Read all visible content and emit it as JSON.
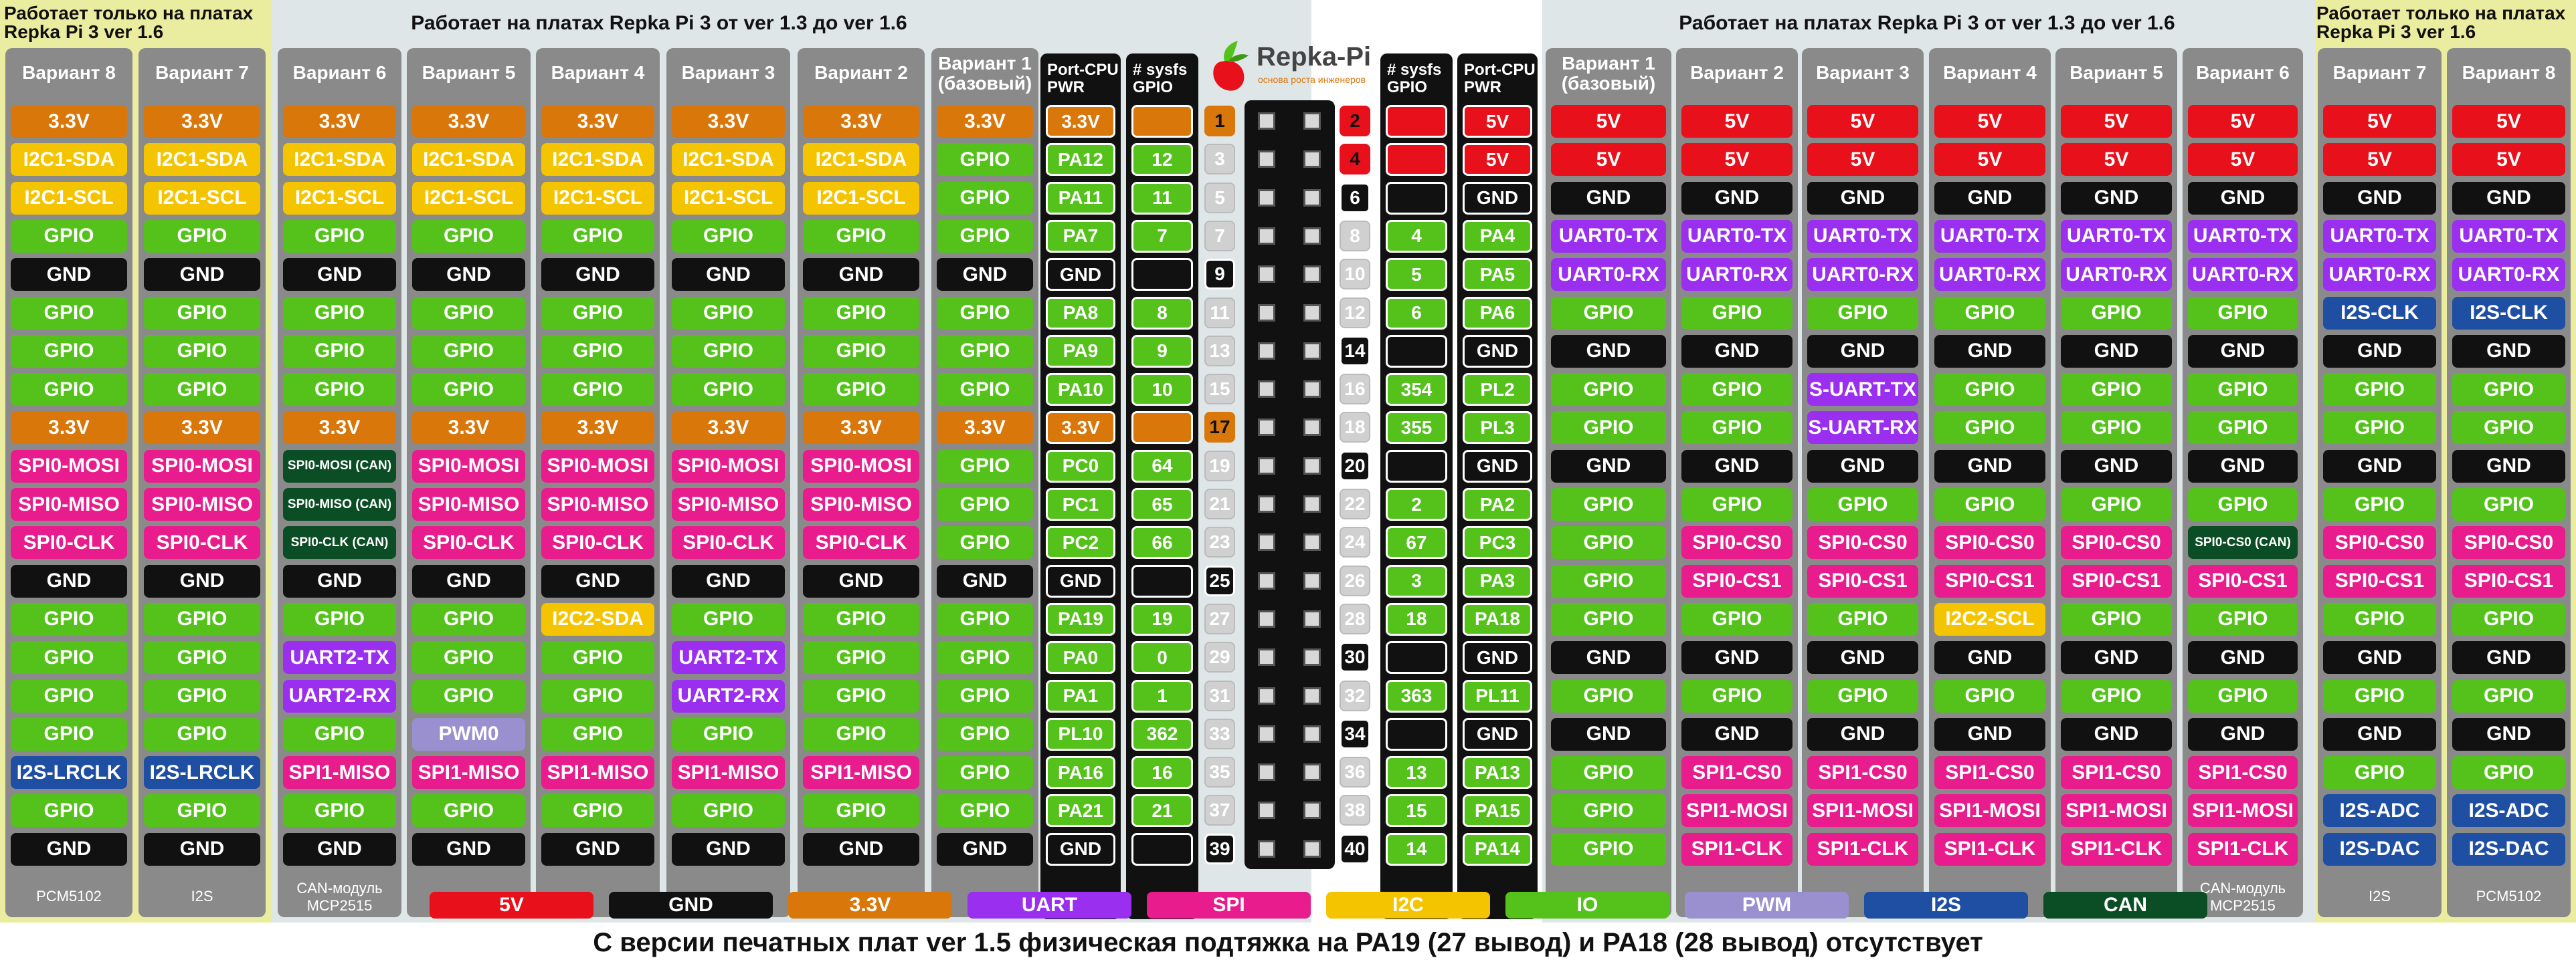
{
  "zones": {
    "left_outer_title": "Работает только на платах\nRepka Pi 3 ver 1.6",
    "left_mid_title": "Работает на платах Repka Pi 3 от ver 1.3 до ver 1.6",
    "right_mid_title": "Работает на платах Repka Pi 3 от ver 1.3 до ver 1.6",
    "right_outer_title": "Работает только на платах\nRepka Pi 3 ver 1.6"
  },
  "logo": {
    "text": "Repka-Pi",
    "subtitle": "основа роста инженеров"
  },
  "colors": {
    "5V": "#e8101a",
    "GND": "#111111",
    "3.3V": "#d9770a",
    "UART": "#9b2ff0",
    "SPI": "#e81c8c",
    "I2C": "#f5c400",
    "IO": "#54c21b",
    "PWM": "#9a90d0",
    "I2S": "#1f4fa3",
    "CAN": "#0b4d24",
    "outline": "#111111"
  },
  "left_columns": [
    {
      "name": "Вариант 8",
      "footer": "PCM5102",
      "cells": [
        "3.3V",
        "I2C1-SDA",
        "I2C1-SCL",
        "GPIO",
        "GND",
        "GPIO",
        "GPIO",
        "GPIO",
        "3.3V",
        "SPI0-MOSI",
        "SPI0-MISO",
        "SPI0-CLK",
        "GND",
        "GPIO",
        "GPIO",
        "GPIO",
        "GPIO",
        "I2S-LRCLK",
        "GPIO",
        "GND"
      ],
      "types": [
        "3.3V",
        "I2C",
        "I2C",
        "IO",
        "GND",
        "IO",
        "IO",
        "IO",
        "3.3V",
        "SPI",
        "SPI",
        "SPI",
        "GND",
        "IO",
        "IO",
        "IO",
        "IO",
        "I2S",
        "IO",
        "GND"
      ]
    },
    {
      "name": "Вариант 7",
      "footer": "I2S",
      "cells": [
        "3.3V",
        "I2C1-SDA",
        "I2C1-SCL",
        "GPIO",
        "GND",
        "GPIO",
        "GPIO",
        "GPIO",
        "3.3V",
        "SPI0-MOSI",
        "SPI0-MISO",
        "SPI0-CLK",
        "GND",
        "GPIO",
        "GPIO",
        "GPIO",
        "GPIO",
        "I2S-LRCLK",
        "GPIO",
        "GND"
      ],
      "types": [
        "3.3V",
        "I2C",
        "I2C",
        "IO",
        "GND",
        "IO",
        "IO",
        "IO",
        "3.3V",
        "SPI",
        "SPI",
        "SPI",
        "GND",
        "IO",
        "IO",
        "IO",
        "IO",
        "I2S",
        "IO",
        "GND"
      ]
    },
    {
      "name": "Вариант 6",
      "footer": "CAN-модуль\nMCP2515",
      "cells": [
        "3.3V",
        "I2C1-SDA",
        "I2C1-SCL",
        "GPIO",
        "GND",
        "GPIO",
        "GPIO",
        "GPIO",
        "3.3V",
        "SPI0-MOSI (CAN)",
        "SPI0-MISO (CAN)",
        "SPI0-CLK (CAN)",
        "GND",
        "GPIO",
        "UART2-TX",
        "UART2-RX",
        "GPIO",
        "SPI1-MISO",
        "GPIO",
        "GND"
      ],
      "types": [
        "3.3V",
        "I2C",
        "I2C",
        "IO",
        "GND",
        "IO",
        "IO",
        "IO",
        "3.3V",
        "CAN",
        "CAN",
        "CAN",
        "GND",
        "IO",
        "UART",
        "UART",
        "IO",
        "SPI",
        "IO",
        "GND"
      ]
    },
    {
      "name": "Вариант 5",
      "footer": "",
      "cells": [
        "3.3V",
        "I2C1-SDA",
        "I2C1-SCL",
        "GPIO",
        "GND",
        "GPIO",
        "GPIO",
        "GPIO",
        "3.3V",
        "SPI0-MOSI",
        "SPI0-MISO",
        "SPI0-CLK",
        "GND",
        "GPIO",
        "GPIO",
        "GPIO",
        "PWM0",
        "SPI1-MISO",
        "GPIO",
        "GND"
      ],
      "types": [
        "3.3V",
        "I2C",
        "I2C",
        "IO",
        "GND",
        "IO",
        "IO",
        "IO",
        "3.3V",
        "SPI",
        "SPI",
        "SPI",
        "GND",
        "IO",
        "IO",
        "IO",
        "PWM",
        "SPI",
        "IO",
        "GND"
      ]
    },
    {
      "name": "Вариант 4",
      "footer": "",
      "cells": [
        "3.3V",
        "I2C1-SDA",
        "I2C1-SCL",
        "GPIO",
        "GND",
        "GPIO",
        "GPIO",
        "GPIO",
        "3.3V",
        "SPI0-MOSI",
        "SPI0-MISO",
        "SPI0-CLK",
        "GND",
        "I2C2-SDA",
        "GPIO",
        "GPIO",
        "GPIO",
        "SPI1-MISO",
        "GPIO",
        "GND"
      ],
      "types": [
        "3.3V",
        "I2C",
        "I2C",
        "IO",
        "GND",
        "IO",
        "IO",
        "IO",
        "3.3V",
        "SPI",
        "SPI",
        "SPI",
        "GND",
        "I2C",
        "IO",
        "IO",
        "IO",
        "SPI",
        "IO",
        "GND"
      ]
    },
    {
      "name": "Вариант 3",
      "footer": "",
      "cells": [
        "3.3V",
        "I2C1-SDA",
        "I2C1-SCL",
        "GPIO",
        "GND",
        "GPIO",
        "GPIO",
        "GPIO",
        "3.3V",
        "SPI0-MOSI",
        "SPI0-MISO",
        "SPI0-CLK",
        "GND",
        "GPIO",
        "UART2-TX",
        "UART2-RX",
        "GPIO",
        "SPI1-MISO",
        "GPIO",
        "GND"
      ],
      "types": [
        "3.3V",
        "I2C",
        "I2C",
        "IO",
        "GND",
        "IO",
        "IO",
        "IO",
        "3.3V",
        "SPI",
        "SPI",
        "SPI",
        "GND",
        "IO",
        "UART",
        "UART",
        "IO",
        "SPI",
        "IO",
        "GND"
      ]
    },
    {
      "name": "Вариант 2",
      "footer": "",
      "cells": [
        "3.3V",
        "I2C1-SDA",
        "I2C1-SCL",
        "GPIO",
        "GND",
        "GPIO",
        "GPIO",
        "GPIO",
        "3.3V",
        "SPI0-MOSI",
        "SPI0-MISO",
        "SPI0-CLK",
        "GND",
        "GPIO",
        "GPIO",
        "GPIO",
        "GPIO",
        "SPI1-MISO",
        "GPIO",
        "GND"
      ],
      "types": [
        "3.3V",
        "I2C",
        "I2C",
        "IO",
        "GND",
        "IO",
        "IO",
        "IO",
        "3.3V",
        "SPI",
        "SPI",
        "SPI",
        "GND",
        "IO",
        "IO",
        "IO",
        "IO",
        "SPI",
        "IO",
        "GND"
      ]
    },
    {
      "name": "Вариант 1\n(базовый)",
      "footer": "",
      "cells": [
        "3.3V",
        "GPIO",
        "GPIO",
        "GPIO",
        "GND",
        "GPIO",
        "GPIO",
        "GPIO",
        "3.3V",
        "GPIO",
        "GPIO",
        "GPIO",
        "GND",
        "GPIO",
        "GPIO",
        "GPIO",
        "GPIO",
        "GPIO",
        "GPIO",
        "GND"
      ],
      "types": [
        "3.3V",
        "IO",
        "IO",
        "IO",
        "GND",
        "IO",
        "IO",
        "IO",
        "3.3V",
        "IO",
        "IO",
        "IO",
        "GND",
        "IO",
        "IO",
        "IO",
        "IO",
        "IO",
        "IO",
        "GND"
      ]
    }
  ],
  "port_left": {
    "header": "Port-CPU\nPWR",
    "cells": [
      "3.3V",
      "PA12",
      "PA11",
      "PA7",
      "GND",
      "PA8",
      "PA9",
      "PA10",
      "3.3V",
      "PC0",
      "PC1",
      "PC2",
      "GND",
      "PA19",
      "PA0",
      "PA1",
      "PL10",
      "PA16",
      "PA21",
      "GND"
    ],
    "types": [
      "3.3V",
      "IO",
      "IO",
      "IO",
      "outline",
      "IO",
      "IO",
      "IO",
      "3.3V",
      "IO",
      "IO",
      "IO",
      "outline",
      "IO",
      "IO",
      "IO",
      "IO",
      "IO",
      "IO",
      "outline"
    ]
  },
  "sysfs_left": {
    "header": "# sysfs\nGPIO",
    "cells": [
      "",
      "12",
      "11",
      "7",
      "",
      "8",
      "9",
      "10",
      "",
      "64",
      "65",
      "66",
      "",
      "19",
      "0",
      "1",
      "362",
      "16",
      "21",
      ""
    ],
    "types": [
      "3.3V",
      "IO",
      "IO",
      "IO",
      "outline",
      "IO",
      "IO",
      "IO",
      "3.3V",
      "IO",
      "IO",
      "IO",
      "outline",
      "IO",
      "IO",
      "IO",
      "IO",
      "IO",
      "IO",
      "outline"
    ]
  },
  "pins_odd": {
    "numbers": [
      "1",
      "3",
      "5",
      "7",
      "9",
      "11",
      "13",
      "15",
      "17",
      "19",
      "21",
      "23",
      "25",
      "27",
      "29",
      "31",
      "33",
      "35",
      "37",
      "39"
    ],
    "types": [
      "3.3V",
      "light",
      "light",
      "light",
      "dark",
      "light",
      "light",
      "light",
      "3.3V",
      "light",
      "light",
      "light",
      "dark",
      "light",
      "light",
      "light",
      "light",
      "light",
      "light",
      "dark"
    ]
  },
  "pins_even": {
    "numbers": [
      "2",
      "4",
      "6",
      "8",
      "10",
      "12",
      "14",
      "16",
      "18",
      "20",
      "22",
      "24",
      "26",
      "28",
      "30",
      "32",
      "34",
      "36",
      "38",
      "40"
    ],
    "types": [
      "5V",
      "5V",
      "dark",
      "light",
      "light",
      "light",
      "dark",
      "light",
      "light",
      "dark",
      "light",
      "light",
      "light",
      "light",
      "dark",
      "light",
      "dark",
      "light",
      "light",
      "dark"
    ]
  },
  "sysfs_right": {
    "header": "# sysfs\nGPIO",
    "cells": [
      "",
      "",
      "",
      "4",
      "5",
      "6",
      "",
      "354",
      "355",
      "",
      "2",
      "67",
      "3",
      "18",
      "",
      "363",
      "",
      "13",
      "15",
      "14"
    ],
    "types": [
      "5V",
      "5V",
      "outline",
      "IO",
      "IO",
      "IO",
      "outline",
      "IO",
      "IO",
      "outline",
      "IO",
      "IO",
      "IO",
      "IO",
      "outline",
      "IO",
      "outline",
      "IO",
      "IO",
      "IO"
    ]
  },
  "port_right": {
    "header": "Port-CPU\nPWR",
    "cells": [
      "5V",
      "5V",
      "GND",
      "PA4",
      "PA5",
      "PA6",
      "GND",
      "PL2",
      "PL3",
      "GND",
      "PA2",
      "PC3",
      "PA3",
      "PA18",
      "GND",
      "PL11",
      "GND",
      "PA13",
      "PA15",
      "PA14"
    ],
    "types": [
      "5V",
      "5V",
      "outline",
      "IO",
      "IO",
      "IO",
      "outline",
      "IO",
      "IO",
      "outline",
      "IO",
      "IO",
      "IO",
      "IO",
      "outline",
      "IO",
      "outline",
      "IO",
      "IO",
      "IO"
    ]
  },
  "right_columns": [
    {
      "name": "Вариант 1\n(базовый)",
      "footer": "",
      "cells": [
        "5V",
        "5V",
        "GND",
        "UART0-TX",
        "UART0-RX",
        "GPIO",
        "GND",
        "GPIO",
        "GPIO",
        "GND",
        "GPIO",
        "GPIO",
        "GPIO",
        "GPIO",
        "GND",
        "GPIO",
        "GND",
        "GPIO",
        "GPIO",
        "GPIO"
      ],
      "types": [
        "5V",
        "5V",
        "GND",
        "UART",
        "UART",
        "IO",
        "GND",
        "IO",
        "IO",
        "GND",
        "IO",
        "IO",
        "IO",
        "IO",
        "GND",
        "IO",
        "GND",
        "IO",
        "IO",
        "IO"
      ]
    },
    {
      "name": "Вариант 2",
      "footer": "",
      "cells": [
        "5V",
        "5V",
        "GND",
        "UART0-TX",
        "UART0-RX",
        "GPIO",
        "GND",
        "GPIO",
        "GPIO",
        "GND",
        "GPIO",
        "SPI0-CS0",
        "SPI0-CS1",
        "GPIO",
        "GND",
        "GPIO",
        "GND",
        "SPI1-CS0",
        "SPI1-MOSI",
        "SPI1-CLK"
      ],
      "types": [
        "5V",
        "5V",
        "GND",
        "UART",
        "UART",
        "IO",
        "GND",
        "IO",
        "IO",
        "GND",
        "IO",
        "SPI",
        "SPI",
        "IO",
        "GND",
        "IO",
        "GND",
        "SPI",
        "SPI",
        "SPI"
      ]
    },
    {
      "name": "Вариант 3",
      "footer": "",
      "cells": [
        "5V",
        "5V",
        "GND",
        "UART0-TX",
        "UART0-RX",
        "GPIO",
        "GND",
        "S-UART-TX",
        "S-UART-RX",
        "GND",
        "GPIO",
        "SPI0-CS0",
        "SPI0-CS1",
        "GPIO",
        "GND",
        "GPIO",
        "GND",
        "SPI1-CS0",
        "SPI1-MOSI",
        "SPI1-CLK"
      ],
      "types": [
        "5V",
        "5V",
        "GND",
        "UART",
        "UART",
        "IO",
        "GND",
        "UART",
        "UART",
        "GND",
        "IO",
        "SPI",
        "SPI",
        "IO",
        "GND",
        "IO",
        "GND",
        "SPI",
        "SPI",
        "SPI"
      ]
    },
    {
      "name": "Вариант 4",
      "footer": "",
      "cells": [
        "5V",
        "5V",
        "GND",
        "UART0-TX",
        "UART0-RX",
        "GPIO",
        "GND",
        "GPIO",
        "GPIO",
        "GND",
        "GPIO",
        "SPI0-CS0",
        "SPI0-CS1",
        "I2C2-SCL",
        "GND",
        "GPIO",
        "GND",
        "SPI1-CS0",
        "SPI1-MOSI",
        "SPI1-CLK"
      ],
      "types": [
        "5V",
        "5V",
        "GND",
        "UART",
        "UART",
        "IO",
        "GND",
        "IO",
        "IO",
        "GND",
        "IO",
        "SPI",
        "SPI",
        "I2C",
        "GND",
        "IO",
        "GND",
        "SPI",
        "SPI",
        "SPI"
      ]
    },
    {
      "name": "Вариант 5",
      "footer": "",
      "cells": [
        "5V",
        "5V",
        "GND",
        "UART0-TX",
        "UART0-RX",
        "GPIO",
        "GND",
        "GPIO",
        "GPIO",
        "GND",
        "GPIO",
        "SPI0-CS0",
        "SPI0-CS1",
        "GPIO",
        "GND",
        "GPIO",
        "GND",
        "SPI1-CS0",
        "SPI1-MOSI",
        "SPI1-CLK"
      ],
      "types": [
        "5V",
        "5V",
        "GND",
        "UART",
        "UART",
        "IO",
        "GND",
        "IO",
        "IO",
        "GND",
        "IO",
        "SPI",
        "SPI",
        "IO",
        "GND",
        "IO",
        "GND",
        "SPI",
        "SPI",
        "SPI"
      ]
    },
    {
      "name": "Вариант 6",
      "footer": "CAN-модуль\nMCP2515",
      "cells": [
        "5V",
        "5V",
        "GND",
        "UART0-TX",
        "UART0-RX",
        "GPIO",
        "GND",
        "GPIO",
        "GPIO",
        "GND",
        "GPIO",
        "SPI0-CS0 (CAN)",
        "SPI0-CS1",
        "GPIO",
        "GND",
        "GPIO",
        "GND",
        "SPI1-CS0",
        "SPI1-MOSI",
        "SPI1-CLK"
      ],
      "types": [
        "5V",
        "5V",
        "GND",
        "UART",
        "UART",
        "IO",
        "GND",
        "IO",
        "IO",
        "GND",
        "IO",
        "CAN",
        "SPI",
        "IO",
        "GND",
        "IO",
        "GND",
        "SPI",
        "SPI",
        "SPI"
      ]
    },
    {
      "name": "Вариант 7",
      "footer": "I2S",
      "cells": [
        "5V",
        "5V",
        "GND",
        "UART0-TX",
        "UART0-RX",
        "I2S-CLK",
        "GND",
        "GPIO",
        "GPIO",
        "GND",
        "GPIO",
        "SPI0-CS0",
        "SPI0-CS1",
        "GPIO",
        "GND",
        "GPIO",
        "GND",
        "GPIO",
        "I2S-ADC",
        "I2S-DAC"
      ],
      "types": [
        "5V",
        "5V",
        "GND",
        "UART",
        "UART",
        "I2S",
        "GND",
        "IO",
        "IO",
        "GND",
        "IO",
        "SPI",
        "SPI",
        "IO",
        "GND",
        "IO",
        "GND",
        "IO",
        "I2S",
        "I2S"
      ]
    },
    {
      "name": "Вариант 8",
      "footer": "PCM5102",
      "cells": [
        "5V",
        "5V",
        "GND",
        "UART0-TX",
        "UART0-RX",
        "I2S-CLK",
        "GND",
        "GPIO",
        "GPIO",
        "GND",
        "GPIO",
        "SPI0-CS0",
        "SPI0-CS1",
        "GPIO",
        "GND",
        "GPIO",
        "GND",
        "GPIO",
        "I2S-ADC",
        "I2S-DAC"
      ],
      "types": [
        "5V",
        "5V",
        "GND",
        "UART",
        "UART",
        "I2S",
        "GND",
        "IO",
        "IO",
        "GND",
        "IO",
        "SPI",
        "SPI",
        "IO",
        "GND",
        "IO",
        "GND",
        "IO",
        "I2S",
        "I2S"
      ]
    }
  ],
  "legend": [
    {
      "label": "5V",
      "type": "5V"
    },
    {
      "label": "GND",
      "type": "GND"
    },
    {
      "label": "3.3V",
      "type": "3.3V"
    },
    {
      "label": "UART",
      "type": "UART"
    },
    {
      "label": "SPI",
      "type": "SPI"
    },
    {
      "label": "I2C",
      "type": "I2C"
    },
    {
      "label": "IO",
      "type": "IO"
    },
    {
      "label": "PWM",
      "type": "PWM"
    },
    {
      "label": "I2S",
      "type": "I2S"
    },
    {
      "label": "CAN",
      "type": "CAN"
    }
  ],
  "footnote": "С версии печатных плат ver 1.5 физическая подтяжка на  PA19 (27 вывод)  и PA18 (28 вывод) отсутствует"
}
